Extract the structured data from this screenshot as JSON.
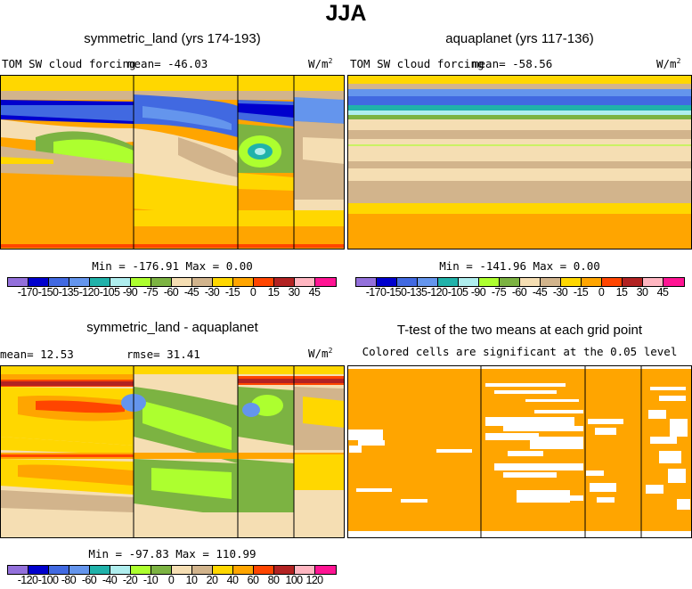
{
  "figure": {
    "title": "JJA"
  },
  "panels": {
    "p1": {
      "title": "symmetric_land (yrs 174-193)",
      "variable": "TOM SW cloud forcing",
      "mean_text": "mean= -46.03",
      "units_base": "W/m",
      "units_exp": "2",
      "stats": "Min = -176.91 Max =   0.00"
    },
    "p2": {
      "title": "aquaplanet (yrs 117-136)",
      "variable": "TOM SW cloud forcing",
      "mean_text": "mean= -58.56",
      "units_base": "W/m",
      "units_exp": "2",
      "stats": "Min = -141.96 Max =   0.00"
    },
    "p3": {
      "title": "symmetric_land - aquaplanet",
      "mean_text": "mean=  12.53",
      "rmse_text": "rmse=  31.41",
      "units_base": "W/m",
      "units_exp": "2",
      "stats": "Min = -97.83 Max = 110.99"
    },
    "p4": {
      "title": "T-test of the two means at each grid point",
      "subtitle": "Colored cells are significant at the 0.05 level"
    }
  },
  "colorbars": {
    "fields": {
      "colors": [
        "#9370db",
        "#0000cd",
        "#4169e1",
        "#6495ed",
        "#20b2aa",
        "#afeeee",
        "#adff2f",
        "#7cb342",
        "#f5deb3",
        "#d2b48c",
        "#ffd700",
        "#ffa500",
        "#ff4500",
        "#b22222",
        "#ffb6c1",
        "#ff1493"
      ],
      "labels": [
        "-170",
        "-150",
        "-135",
        "-120",
        "-105",
        "-90",
        "-75",
        "-60",
        "-45",
        "-30",
        "-15",
        "0",
        "15",
        "30",
        "45"
      ]
    },
    "diff": {
      "colors": [
        "#9370db",
        "#0000cd",
        "#4169e1",
        "#6495ed",
        "#20b2aa",
        "#afeeee",
        "#adff2f",
        "#7cb342",
        "#f5deb3",
        "#d2b48c",
        "#ffd700",
        "#ffa500",
        "#ff4500",
        "#b22222",
        "#ffb6c1",
        "#ff1493"
      ],
      "labels": [
        "-120",
        "-100",
        "-80",
        "-60",
        "-40",
        "-20",
        "-10",
        "0",
        "10",
        "20",
        "40",
        "60",
        "80",
        "100",
        "120"
      ]
    }
  },
  "colors": {
    "ttest_fill": "#ffa500",
    "background": "#ffffff"
  },
  "chart_data": [
    {
      "type": "heatmap",
      "title": "symmetric_land (yrs 174-193)",
      "variable": "TOM SW cloud forcing",
      "units": "W/m2",
      "mean": -46.03,
      "min": -176.91,
      "max": 0.0,
      "levels": [
        -170,
        -150,
        -135,
        -120,
        -105,
        -90,
        -75,
        -60,
        -45,
        -30,
        -15,
        0,
        15,
        30,
        45
      ]
    },
    {
      "type": "heatmap",
      "title": "aquaplanet (yrs 117-136)",
      "variable": "TOM SW cloud forcing",
      "units": "W/m2",
      "mean": -58.56,
      "min": -141.96,
      "max": 0.0,
      "levels": [
        -170,
        -150,
        -135,
        -120,
        -105,
        -90,
        -75,
        -60,
        -45,
        -30,
        -15,
        0,
        15,
        30,
        45
      ]
    },
    {
      "type": "heatmap",
      "title": "symmetric_land - aquaplanet",
      "units": "W/m2",
      "mean": 12.53,
      "rmse": 31.41,
      "min": -97.83,
      "max": 110.99,
      "levels": [
        -120,
        -100,
        -80,
        -60,
        -40,
        -20,
        -10,
        0,
        10,
        20,
        40,
        60,
        80,
        100,
        120
      ]
    },
    {
      "type": "heatmap",
      "title": "T-test of the two means at each grid point",
      "subtitle": "Colored cells are significant at the 0.05 level"
    }
  ]
}
